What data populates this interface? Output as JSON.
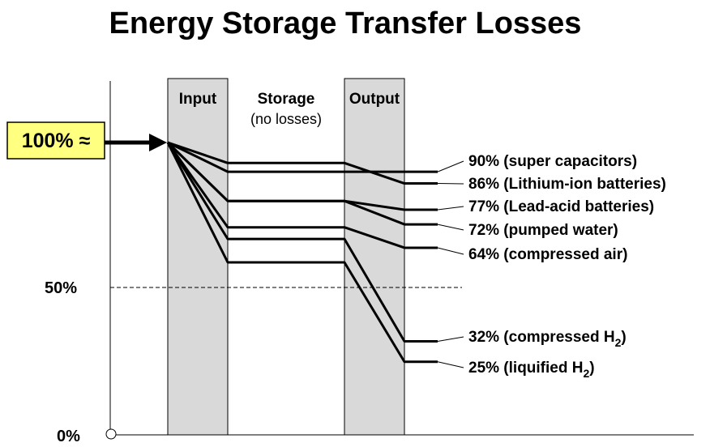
{
  "title": "Energy Storage Transfer Losses",
  "stages": {
    "input": "Input",
    "storage": "Storage",
    "storage_note": "(no losses)",
    "output": "Output"
  },
  "input_label": "100% ≈",
  "axis": {
    "mid_label": "50%",
    "zero_label": "0%"
  },
  "colors": {
    "panel_fill": "#d9d9d9",
    "input_box": "#ffff80",
    "line": "#000000"
  },
  "chart_data": {
    "type": "line",
    "y_unit": "%",
    "ylim": [
      0,
      100
    ],
    "reference_line": 50,
    "series": [
      {
        "label": "90% (super capacitors)",
        "label_text": "90% (super capacitors)",
        "after_input": 90,
        "after_output": 90
      },
      {
        "label": "86% (Lithium-ion batteries)",
        "label_text": "86% (Lithium-ion batteries)",
        "after_input": 93,
        "after_output": 86
      },
      {
        "label": "77% (Lead-acid batteries)",
        "label_text": "77% (Lead-acid batteries)",
        "after_input": 80,
        "after_output": 77
      },
      {
        "label": "72% (pumped water)",
        "label_text": "72% (pumped water)",
        "after_input": 80,
        "after_output": 72
      },
      {
        "label": "64% (compressed air)",
        "label_text": "64% (compressed air)",
        "after_input": 71,
        "after_output": 64
      },
      {
        "label": "32% (compressed H2)",
        "label_text": "32% (compressed H",
        "label_sub": "2",
        "label_end": ")",
        "after_input": 67,
        "after_output": 32
      },
      {
        "label": "25% (liquified H2)",
        "label_text": "25% (liquified H",
        "label_sub": "2",
        "label_end": ")",
        "after_input": 59,
        "after_output": 25
      }
    ]
  }
}
